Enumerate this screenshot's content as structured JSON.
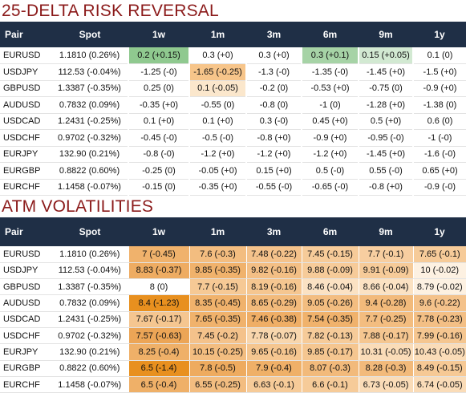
{
  "rr": {
    "title": "25-DELTA RISK REVERSAL",
    "headers": [
      "Pair",
      "Spot",
      "1w",
      "1m",
      "3m",
      "6m",
      "9m",
      "1y"
    ],
    "rows": [
      {
        "pair": "EURUSD",
        "spot": "1.1810 (0.26%)",
        "cells": [
          {
            "t": "0.2 (+0.15)",
            "c": "#8fc98f"
          },
          {
            "t": "0.3 (+0)",
            "c": "#ffffff"
          },
          {
            "t": "0.3 (+0)",
            "c": "#ffffff"
          },
          {
            "t": "0.3 (+0.1)",
            "c": "#a6d3a6"
          },
          {
            "t": "0.15 (+0.05)",
            "c": "#d2e9d2"
          },
          {
            "t": "0.1 (0)",
            "c": "#ffffff"
          }
        ]
      },
      {
        "pair": "USDJPY",
        "spot": "112.53 (-0.04%)",
        "cells": [
          {
            "t": "-1.25 (-0)",
            "c": "#ffffff"
          },
          {
            "t": "-1.65 (-0.25)",
            "c": "#f7c58a"
          },
          {
            "t": "-1.3 (-0)",
            "c": "#ffffff"
          },
          {
            "t": "-1.35 (-0)",
            "c": "#ffffff"
          },
          {
            "t": "-1.45 (+0)",
            "c": "#ffffff"
          },
          {
            "t": "-1.5 (+0)",
            "c": "#ffffff"
          }
        ]
      },
      {
        "pair": "GBPUSD",
        "spot": "1.3387 (-0.35%)",
        "cells": [
          {
            "t": "0.25 (0)",
            "c": "#ffffff"
          },
          {
            "t": "0.1 (-0.05)",
            "c": "#fbe7cc"
          },
          {
            "t": "-0.2 (0)",
            "c": "#ffffff"
          },
          {
            "t": "-0.53 (+0)",
            "c": "#ffffff"
          },
          {
            "t": "-0.75 (0)",
            "c": "#ffffff"
          },
          {
            "t": "-0.9 (+0)",
            "c": "#ffffff"
          }
        ]
      },
      {
        "pair": "AUDUSD",
        "spot": "0.7832 (0.09%)",
        "cells": [
          {
            "t": "-0.35 (+0)",
            "c": "#ffffff"
          },
          {
            "t": "-0.55 (0)",
            "c": "#ffffff"
          },
          {
            "t": "-0.8 (0)",
            "c": "#ffffff"
          },
          {
            "t": "-1 (0)",
            "c": "#ffffff"
          },
          {
            "t": "-1.28 (+0)",
            "c": "#ffffff"
          },
          {
            "t": "-1.38 (0)",
            "c": "#ffffff"
          }
        ]
      },
      {
        "pair": "USDCAD",
        "spot": "1.2431 (-0.25%)",
        "cells": [
          {
            "t": "0.1 (+0)",
            "c": "#ffffff"
          },
          {
            "t": "0.1 (+0)",
            "c": "#ffffff"
          },
          {
            "t": "0.3 (-0)",
            "c": "#ffffff"
          },
          {
            "t": "0.45 (+0)",
            "c": "#ffffff"
          },
          {
            "t": "0.5 (+0)",
            "c": "#ffffff"
          },
          {
            "t": "0.6 (0)",
            "c": "#ffffff"
          }
        ]
      },
      {
        "pair": "USDCHF",
        "spot": "0.9702 (-0.32%)",
        "cells": [
          {
            "t": "-0.45 (-0)",
            "c": "#ffffff"
          },
          {
            "t": "-0.5 (-0)",
            "c": "#ffffff"
          },
          {
            "t": "-0.8 (+0)",
            "c": "#ffffff"
          },
          {
            "t": "-0.9 (+0)",
            "c": "#ffffff"
          },
          {
            "t": "-0.95 (-0)",
            "c": "#ffffff"
          },
          {
            "t": "-1 (-0)",
            "c": "#ffffff"
          }
        ]
      },
      {
        "pair": "EURJPY",
        "spot": "132.90 (0.21%)",
        "cells": [
          {
            "t": "-0.8 (-0)",
            "c": "#ffffff"
          },
          {
            "t": "-1.2 (+0)",
            "c": "#ffffff"
          },
          {
            "t": "-1.2 (+0)",
            "c": "#ffffff"
          },
          {
            "t": "-1.2 (+0)",
            "c": "#ffffff"
          },
          {
            "t": "-1.45 (+0)",
            "c": "#ffffff"
          },
          {
            "t": "-1.6 (-0)",
            "c": "#ffffff"
          }
        ]
      },
      {
        "pair": "EURGBP",
        "spot": "0.8822 (0.60%)",
        "cells": [
          {
            "t": "-0.25 (0)",
            "c": "#ffffff"
          },
          {
            "t": "-0.05 (+0)",
            "c": "#ffffff"
          },
          {
            "t": "0.15 (+0)",
            "c": "#ffffff"
          },
          {
            "t": "0.5 (-0)",
            "c": "#ffffff"
          },
          {
            "t": "0.55 (-0)",
            "c": "#ffffff"
          },
          {
            "t": "0.65 (+0)",
            "c": "#ffffff"
          }
        ]
      },
      {
        "pair": "EURCHF",
        "spot": "1.1458 (-0.07%)",
        "cells": [
          {
            "t": "-0.15 (0)",
            "c": "#ffffff"
          },
          {
            "t": "-0.35 (+0)",
            "c": "#ffffff"
          },
          {
            "t": "-0.55 (-0)",
            "c": "#ffffff"
          },
          {
            "t": "-0.65 (-0)",
            "c": "#ffffff"
          },
          {
            "t": "-0.8 (+0)",
            "c": "#ffffff"
          },
          {
            "t": "-0.9 (-0)",
            "c": "#ffffff"
          }
        ]
      }
    ]
  },
  "atm": {
    "title": "ATM VOLATILITIES",
    "headers": [
      "Pair",
      "Spot",
      "1w",
      "1m",
      "3m",
      "6m",
      "9m",
      "1y"
    ],
    "rows": [
      {
        "pair": "EURUSD",
        "spot": "1.1810 (0.26%)",
        "cells": [
          {
            "t": "7 (-0.45)",
            "c": "#f0b26c"
          },
          {
            "t": "7.6 (-0.3)",
            "c": "#f3bd80"
          },
          {
            "t": "7.48 (-0.22)",
            "c": "#f4c28b"
          },
          {
            "t": "7.45 (-0.15)",
            "c": "#f6cb99"
          },
          {
            "t": "7.7 (-0.1)",
            "c": "#f7cea0"
          },
          {
            "t": "7.65 (-0.1)",
            "c": "#f6cb99"
          }
        ]
      },
      {
        "pair": "USDJPY",
        "spot": "112.53 (-0.04%)",
        "cells": [
          {
            "t": "8.83 (-0.37)",
            "c": "#eeac62"
          },
          {
            "t": "9.85 (-0.35)",
            "c": "#f0b26c"
          },
          {
            "t": "9.82 (-0.16)",
            "c": "#f3bf85"
          },
          {
            "t": "9.88 (-0.09)",
            "c": "#f6cb99"
          },
          {
            "t": "9.91 (-0.09)",
            "c": "#f6cb99"
          },
          {
            "t": "10 (-0.02)",
            "c": "#fdf1e2"
          }
        ]
      },
      {
        "pair": "GBPUSD",
        "spot": "1.3387 (-0.35%)",
        "cells": [
          {
            "t": "8 (0)",
            "c": "#ffffff"
          },
          {
            "t": "7.7 (-0.15)",
            "c": "#f6c995"
          },
          {
            "t": "8.19 (-0.16)",
            "c": "#f5c690"
          },
          {
            "t": "8.46 (-0.04)",
            "c": "#fbe2c3"
          },
          {
            "t": "8.66 (-0.04)",
            "c": "#fbe2c3"
          },
          {
            "t": "8.79 (-0.02)",
            "c": "#fdf1e2"
          }
        ]
      },
      {
        "pair": "AUDUSD",
        "spot": "0.7832 (0.09%)",
        "cells": [
          {
            "t": "8.4 (-1.23)",
            "c": "#e8901f"
          },
          {
            "t": "8.35 (-0.45)",
            "c": "#f0b26c"
          },
          {
            "t": "8.65 (-0.29)",
            "c": "#f2ba7b"
          },
          {
            "t": "9.05 (-0.26)",
            "c": "#f3bd80"
          },
          {
            "t": "9.4 (-0.28)",
            "c": "#f2ba7b"
          },
          {
            "t": "9.6 (-0.22)",
            "c": "#f4c28b"
          }
        ]
      },
      {
        "pair": "USDCAD",
        "spot": "1.2431 (-0.25%)",
        "cells": [
          {
            "t": "7.67 (-0.17)",
            "c": "#f5c690"
          },
          {
            "t": "7.65 (-0.35)",
            "c": "#f0b26c"
          },
          {
            "t": "7.46 (-0.38)",
            "c": "#efae66"
          },
          {
            "t": "7.54 (-0.35)",
            "c": "#f0b26c"
          },
          {
            "t": "7.7 (-0.25)",
            "c": "#f3bd80"
          },
          {
            "t": "7.78 (-0.23)",
            "c": "#f3bf85"
          }
        ]
      },
      {
        "pair": "USDCHF",
        "spot": "0.9702 (-0.32%)",
        "cells": [
          {
            "t": "7.57 (-0.63)",
            "c": "#eca556"
          },
          {
            "t": "7.45 (-0.2)",
            "c": "#f4c28b"
          },
          {
            "t": "7.78 (-0.07)",
            "c": "#f8d6ad"
          },
          {
            "t": "7.82 (-0.13)",
            "c": "#f6cb99"
          },
          {
            "t": "7.88 (-0.17)",
            "c": "#f5c690"
          },
          {
            "t": "7.99 (-0.16)",
            "c": "#f5c690"
          }
        ]
      },
      {
        "pair": "EURJPY",
        "spot": "132.90 (0.21%)",
        "cells": [
          {
            "t": "8.25 (-0.4)",
            "c": "#efb068"
          },
          {
            "t": "10.15 (-0.25)",
            "c": "#f3bd80"
          },
          {
            "t": "9.65 (-0.16)",
            "c": "#f5c690"
          },
          {
            "t": "9.85 (-0.17)",
            "c": "#f5c690"
          },
          {
            "t": "10.31 (-0.05)",
            "c": "#fadcb8"
          },
          {
            "t": "10.43 (-0.05)",
            "c": "#fadcb8"
          }
        ]
      },
      {
        "pair": "EURGBP",
        "spot": "0.8822 (0.60%)",
        "cells": [
          {
            "t": "6.5 (-1.4)",
            "c": "#e8901f"
          },
          {
            "t": "7.8 (-0.5)",
            "c": "#eeab5f"
          },
          {
            "t": "7.9 (-0.4)",
            "c": "#efb068"
          },
          {
            "t": "8.07 (-0.3)",
            "c": "#f2ba7b"
          },
          {
            "t": "8.28 (-0.3)",
            "c": "#f2ba7b"
          },
          {
            "t": "8.49 (-0.15)",
            "c": "#f6c995"
          }
        ]
      },
      {
        "pair": "EURCHF",
        "spot": "1.1458 (-0.07%)",
        "cells": [
          {
            "t": "6.5 (-0.4)",
            "c": "#efb068"
          },
          {
            "t": "6.55 (-0.25)",
            "c": "#f3bd80"
          },
          {
            "t": "6.63 (-0.1)",
            "c": "#f6cb99"
          },
          {
            "t": "6.6 (-0.1)",
            "c": "#f6cb99"
          },
          {
            "t": "6.73 (-0.05)",
            "c": "#fadcb8"
          },
          {
            "t": "6.74 (-0.05)",
            "c": "#fadcb8"
          }
        ]
      }
    ]
  }
}
